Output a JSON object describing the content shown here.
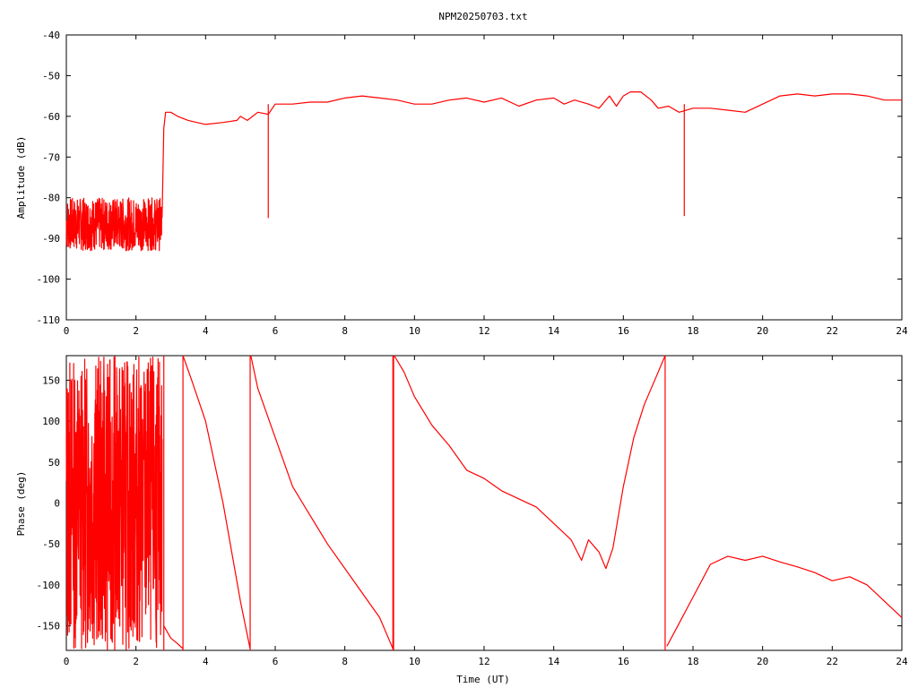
{
  "title": "NPM20250703.txt",
  "colors": {
    "trace": "#ff0000",
    "axes": "#000000",
    "background": "#ffffff"
  },
  "chart_data": [
    {
      "type": "line",
      "name": "amplitude-panel",
      "xlabel": "",
      "ylabel": "Amplitude (dB)",
      "xlim": [
        0,
        24
      ],
      "ylim": [
        -110,
        -40
      ],
      "x_ticks": [
        0,
        2,
        4,
        6,
        8,
        10,
        12,
        14,
        16,
        18,
        20,
        22,
        24
      ],
      "y_ticks": [
        -110,
        -100,
        -90,
        -80,
        -70,
        -60,
        -50,
        -40
      ],
      "grid": false,
      "noisy_band": {
        "x_range": [
          0,
          2.75
        ],
        "center": -87,
        "spread": [
          -93,
          -80
        ]
      },
      "series": [
        {
          "x": [
            2.75,
            2.8,
            2.85,
            2.9,
            3.0,
            3.2,
            3.5,
            4.0,
            4.5,
            4.9,
            5.0,
            5.2,
            5.5,
            5.8,
            6.0,
            6.5,
            7.0,
            7.5,
            8.0,
            8.5,
            9.0,
            9.5,
            10.0,
            10.5,
            11.0,
            11.5,
            12.0,
            12.5,
            13.0,
            13.5,
            14.0,
            14.3,
            14.6,
            15.0,
            15.3,
            15.6,
            15.8,
            16.0,
            16.2,
            16.5,
            16.8,
            17.0,
            17.3,
            17.6,
            18.0,
            18.5,
            19.0,
            19.5,
            20.0,
            20.5,
            21.0,
            21.5,
            22.0,
            22.5,
            23.0,
            23.5,
            24.0
          ],
          "y": [
            -85,
            -63,
            -59,
            -59,
            -59,
            -60,
            -61,
            -62,
            -61.5,
            -61,
            -60,
            -61,
            -59,
            -59.5,
            -57,
            -57,
            -56.5,
            -56.5,
            -55.5,
            -55,
            -55.5,
            -56,
            -57,
            -57,
            -56,
            -55.5,
            -56.5,
            -55.5,
            -57.5,
            -56,
            -55.5,
            -57,
            -56,
            -57,
            -58,
            -55,
            -57.5,
            -55,
            -54,
            -54,
            -56,
            -58,
            -57.5,
            -59,
            -58,
            -58,
            -58.5,
            -59,
            -57,
            -55,
            -54.5,
            -55,
            -54.5,
            -54.5,
            -55,
            -56,
            -56
          ]
        }
      ],
      "spikes": [
        {
          "x": 5.8,
          "y": -85
        },
        {
          "x": 17.75,
          "y": -84.5
        }
      ]
    },
    {
      "type": "line",
      "name": "phase-panel",
      "xlabel": "Time (UT)",
      "ylabel": "Phase (deg)",
      "xlim": [
        0,
        24
      ],
      "ylim": [
        -180,
        180
      ],
      "x_ticks": [
        0,
        2,
        4,
        6,
        8,
        10,
        12,
        14,
        16,
        18,
        20,
        22,
        24
      ],
      "y_ticks": [
        -150,
        -100,
        -50,
        0,
        50,
        100,
        150
      ],
      "grid": false,
      "noisy_band": {
        "x_range": [
          0,
          2.75
        ],
        "center": 0,
        "spread": [
          -180,
          180
        ]
      },
      "series": [
        {
          "x": [
            2.8,
            3.0,
            3.2,
            3.35
          ],
          "y": [
            -150,
            -165,
            -172,
            -178
          ]
        },
        {
          "x": [
            3.35,
            3.6,
            4.0,
            4.5,
            5.0,
            5.28
          ],
          "y": [
            180,
            150,
            100,
            0,
            -120,
            -178
          ]
        },
        {
          "x": [
            5.3,
            5.5,
            6.0,
            6.5,
            7.0,
            7.5,
            8.0,
            8.5,
            9.0,
            9.38
          ],
          "y": [
            180,
            140,
            80,
            20,
            -15,
            -50,
            -80,
            -110,
            -140,
            -178
          ]
        },
        {
          "x": [
            9.42,
            9.7,
            10.0,
            10.5,
            11.0,
            11.5,
            12.0,
            12.5,
            13.0,
            13.5,
            14.0,
            14.5,
            14.8,
            15.0,
            15.3,
            15.5,
            15.7,
            16.0,
            16.3,
            16.6,
            17.0,
            17.2
          ],
          "y": [
            180,
            160,
            130,
            95,
            70,
            40,
            30,
            15,
            5,
            -5,
            -25,
            -45,
            -70,
            -45,
            -60,
            -80,
            -55,
            20,
            80,
            120,
            160,
            180
          ]
        },
        {
          "x": [
            17.25,
            17.5,
            18.0,
            18.5,
            19.0,
            19.5,
            20.0,
            20.5,
            21.0,
            21.5,
            22.0,
            22.5,
            23.0,
            23.5,
            24.0
          ],
          "y": [
            -175,
            -155,
            -115,
            -75,
            -65,
            -70,
            -65,
            -72,
            -78,
            -85,
            -95,
            -90,
            -100,
            -120,
            -140
          ]
        }
      ],
      "wraps": [
        2.8,
        3.35,
        5.28,
        9.38,
        9.4,
        17.2
      ]
    }
  ]
}
